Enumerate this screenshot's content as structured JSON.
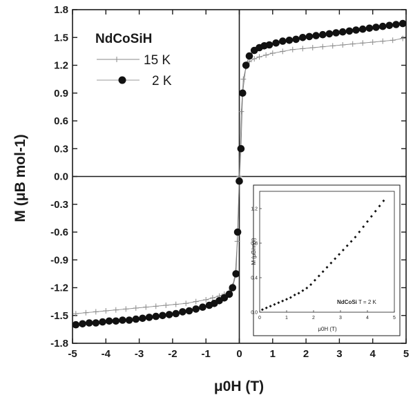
{
  "chart_data": [
    {
      "type": "scatter",
      "title": "",
      "xlabel": "μ0H (T)",
      "ylabel": "M (μB mol-1)",
      "xlim": [
        -5,
        5
      ],
      "ylim": [
        -1.8,
        1.8
      ],
      "xticks": [
        "-5",
        "-4",
        "-3",
        "-2",
        "-1",
        "0",
        "1",
        "2",
        "3",
        "4",
        "5"
      ],
      "yticks": [
        "-1.8",
        "-1.5",
        "-1.2",
        "-0.9",
        "-0.6",
        "-0.3",
        "0.0",
        "0.3",
        "0.6",
        "0.9",
        "1.2",
        "1.5",
        "1.8"
      ],
      "grid": false,
      "legend": {
        "title": "NdCoSiH",
        "placement": "top-left",
        "entries": [
          "15 K",
          "2 K"
        ]
      },
      "series": [
        {
          "name": "15 K",
          "marker": "plus",
          "color": "#8a8a8a",
          "x": [
            -4.9,
            -4.6,
            -4.3,
            -4.0,
            -3.7,
            -3.4,
            -3.1,
            -2.8,
            -2.5,
            -2.2,
            -1.9,
            -1.6,
            -1.3,
            -1.0,
            -0.8,
            -0.6,
            -0.45,
            -0.3,
            -0.2,
            -0.12,
            -0.06,
            0,
            0.06,
            0.12,
            0.2,
            0.3,
            0.45,
            0.6,
            0.8,
            1.0,
            1.3,
            1.6,
            1.9,
            2.2,
            2.5,
            2.8,
            3.1,
            3.4,
            3.7,
            4.0,
            4.3,
            4.6,
            4.9
          ],
          "y": [
            -1.48,
            -1.47,
            -1.46,
            -1.45,
            -1.44,
            -1.43,
            -1.42,
            -1.41,
            -1.4,
            -1.39,
            -1.38,
            -1.37,
            -1.35,
            -1.33,
            -1.31,
            -1.29,
            -1.27,
            -1.24,
            -1.18,
            -1.05,
            -0.7,
            0,
            0.7,
            1.05,
            1.18,
            1.24,
            1.27,
            1.29,
            1.31,
            1.33,
            1.35,
            1.37,
            1.38,
            1.39,
            1.4,
            1.41,
            1.42,
            1.43,
            1.44,
            1.45,
            1.46,
            1.47,
            1.49
          ]
        },
        {
          "name": "2 K",
          "marker": "circle",
          "color": "#111111",
          "x": [
            -4.9,
            -4.7,
            -4.5,
            -4.3,
            -4.1,
            -3.9,
            -3.7,
            -3.5,
            -3.3,
            -3.1,
            -2.9,
            -2.7,
            -2.5,
            -2.3,
            -2.1,
            -1.9,
            -1.7,
            -1.5,
            -1.3,
            -1.1,
            -0.9,
            -0.75,
            -0.6,
            -0.45,
            -0.3,
            -0.2,
            -0.1,
            -0.05,
            0,
            0.05,
            0.1,
            0.2,
            0.3,
            0.45,
            0.6,
            0.75,
            0.9,
            1.1,
            1.3,
            1.5,
            1.7,
            1.9,
            2.1,
            2.3,
            2.5,
            2.7,
            2.9,
            3.1,
            3.3,
            3.5,
            3.7,
            3.9,
            4.1,
            4.3,
            4.5,
            4.7,
            4.9
          ],
          "y": [
            -1.6,
            -1.59,
            -1.58,
            -1.58,
            -1.57,
            -1.56,
            -1.56,
            -1.55,
            -1.55,
            -1.54,
            -1.53,
            -1.52,
            -1.51,
            -1.5,
            -1.49,
            -1.48,
            -1.46,
            -1.45,
            -1.43,
            -1.41,
            -1.39,
            -1.37,
            -1.34,
            -1.31,
            -1.27,
            -1.2,
            -1.05,
            -0.6,
            -0.05,
            0.3,
            0.9,
            1.2,
            1.3,
            1.36,
            1.39,
            1.41,
            1.42,
            1.44,
            1.46,
            1.47,
            1.48,
            1.5,
            1.51,
            1.52,
            1.53,
            1.54,
            1.55,
            1.56,
            1.57,
            1.58,
            1.59,
            1.6,
            1.61,
            1.62,
            1.63,
            1.64,
            1.65
          ]
        }
      ]
    },
    {
      "type": "scatter",
      "title": "",
      "inset": true,
      "xlabel": "μ0H (T)",
      "ylabel": "M (μB/mol)",
      "xlim": [
        0,
        5
      ],
      "ylim": [
        0,
        1.4
      ],
      "xticks": [
        "0",
        "1",
        "2",
        "3",
        "4",
        "5"
      ],
      "yticks": [
        "0.0",
        "0.4",
        "0.8",
        "1.2"
      ],
      "annotation": {
        "bold": "NdCoSi",
        "text": " T = 2 K"
      },
      "series": [
        {
          "marker": "diamond",
          "color": "#111111",
          "x": [
            0.1,
            0.25,
            0.4,
            0.55,
            0.7,
            0.85,
            1.0,
            1.15,
            1.3,
            1.45,
            1.6,
            1.75,
            1.9,
            2.05,
            2.2,
            2.35,
            2.5,
            2.65,
            2.8,
            2.95,
            3.1,
            3.25,
            3.4,
            3.55,
            3.7,
            3.85,
            4.0,
            4.15,
            4.3,
            4.45,
            4.6
          ],
          "y": [
            0.03,
            0.05,
            0.07,
            0.09,
            0.11,
            0.13,
            0.15,
            0.17,
            0.2,
            0.22,
            0.25,
            0.28,
            0.32,
            0.37,
            0.42,
            0.47,
            0.52,
            0.57,
            0.62,
            0.67,
            0.72,
            0.77,
            0.82,
            0.87,
            0.93,
            0.99,
            1.05,
            1.11,
            1.17,
            1.23,
            1.29
          ]
        }
      ]
    }
  ]
}
